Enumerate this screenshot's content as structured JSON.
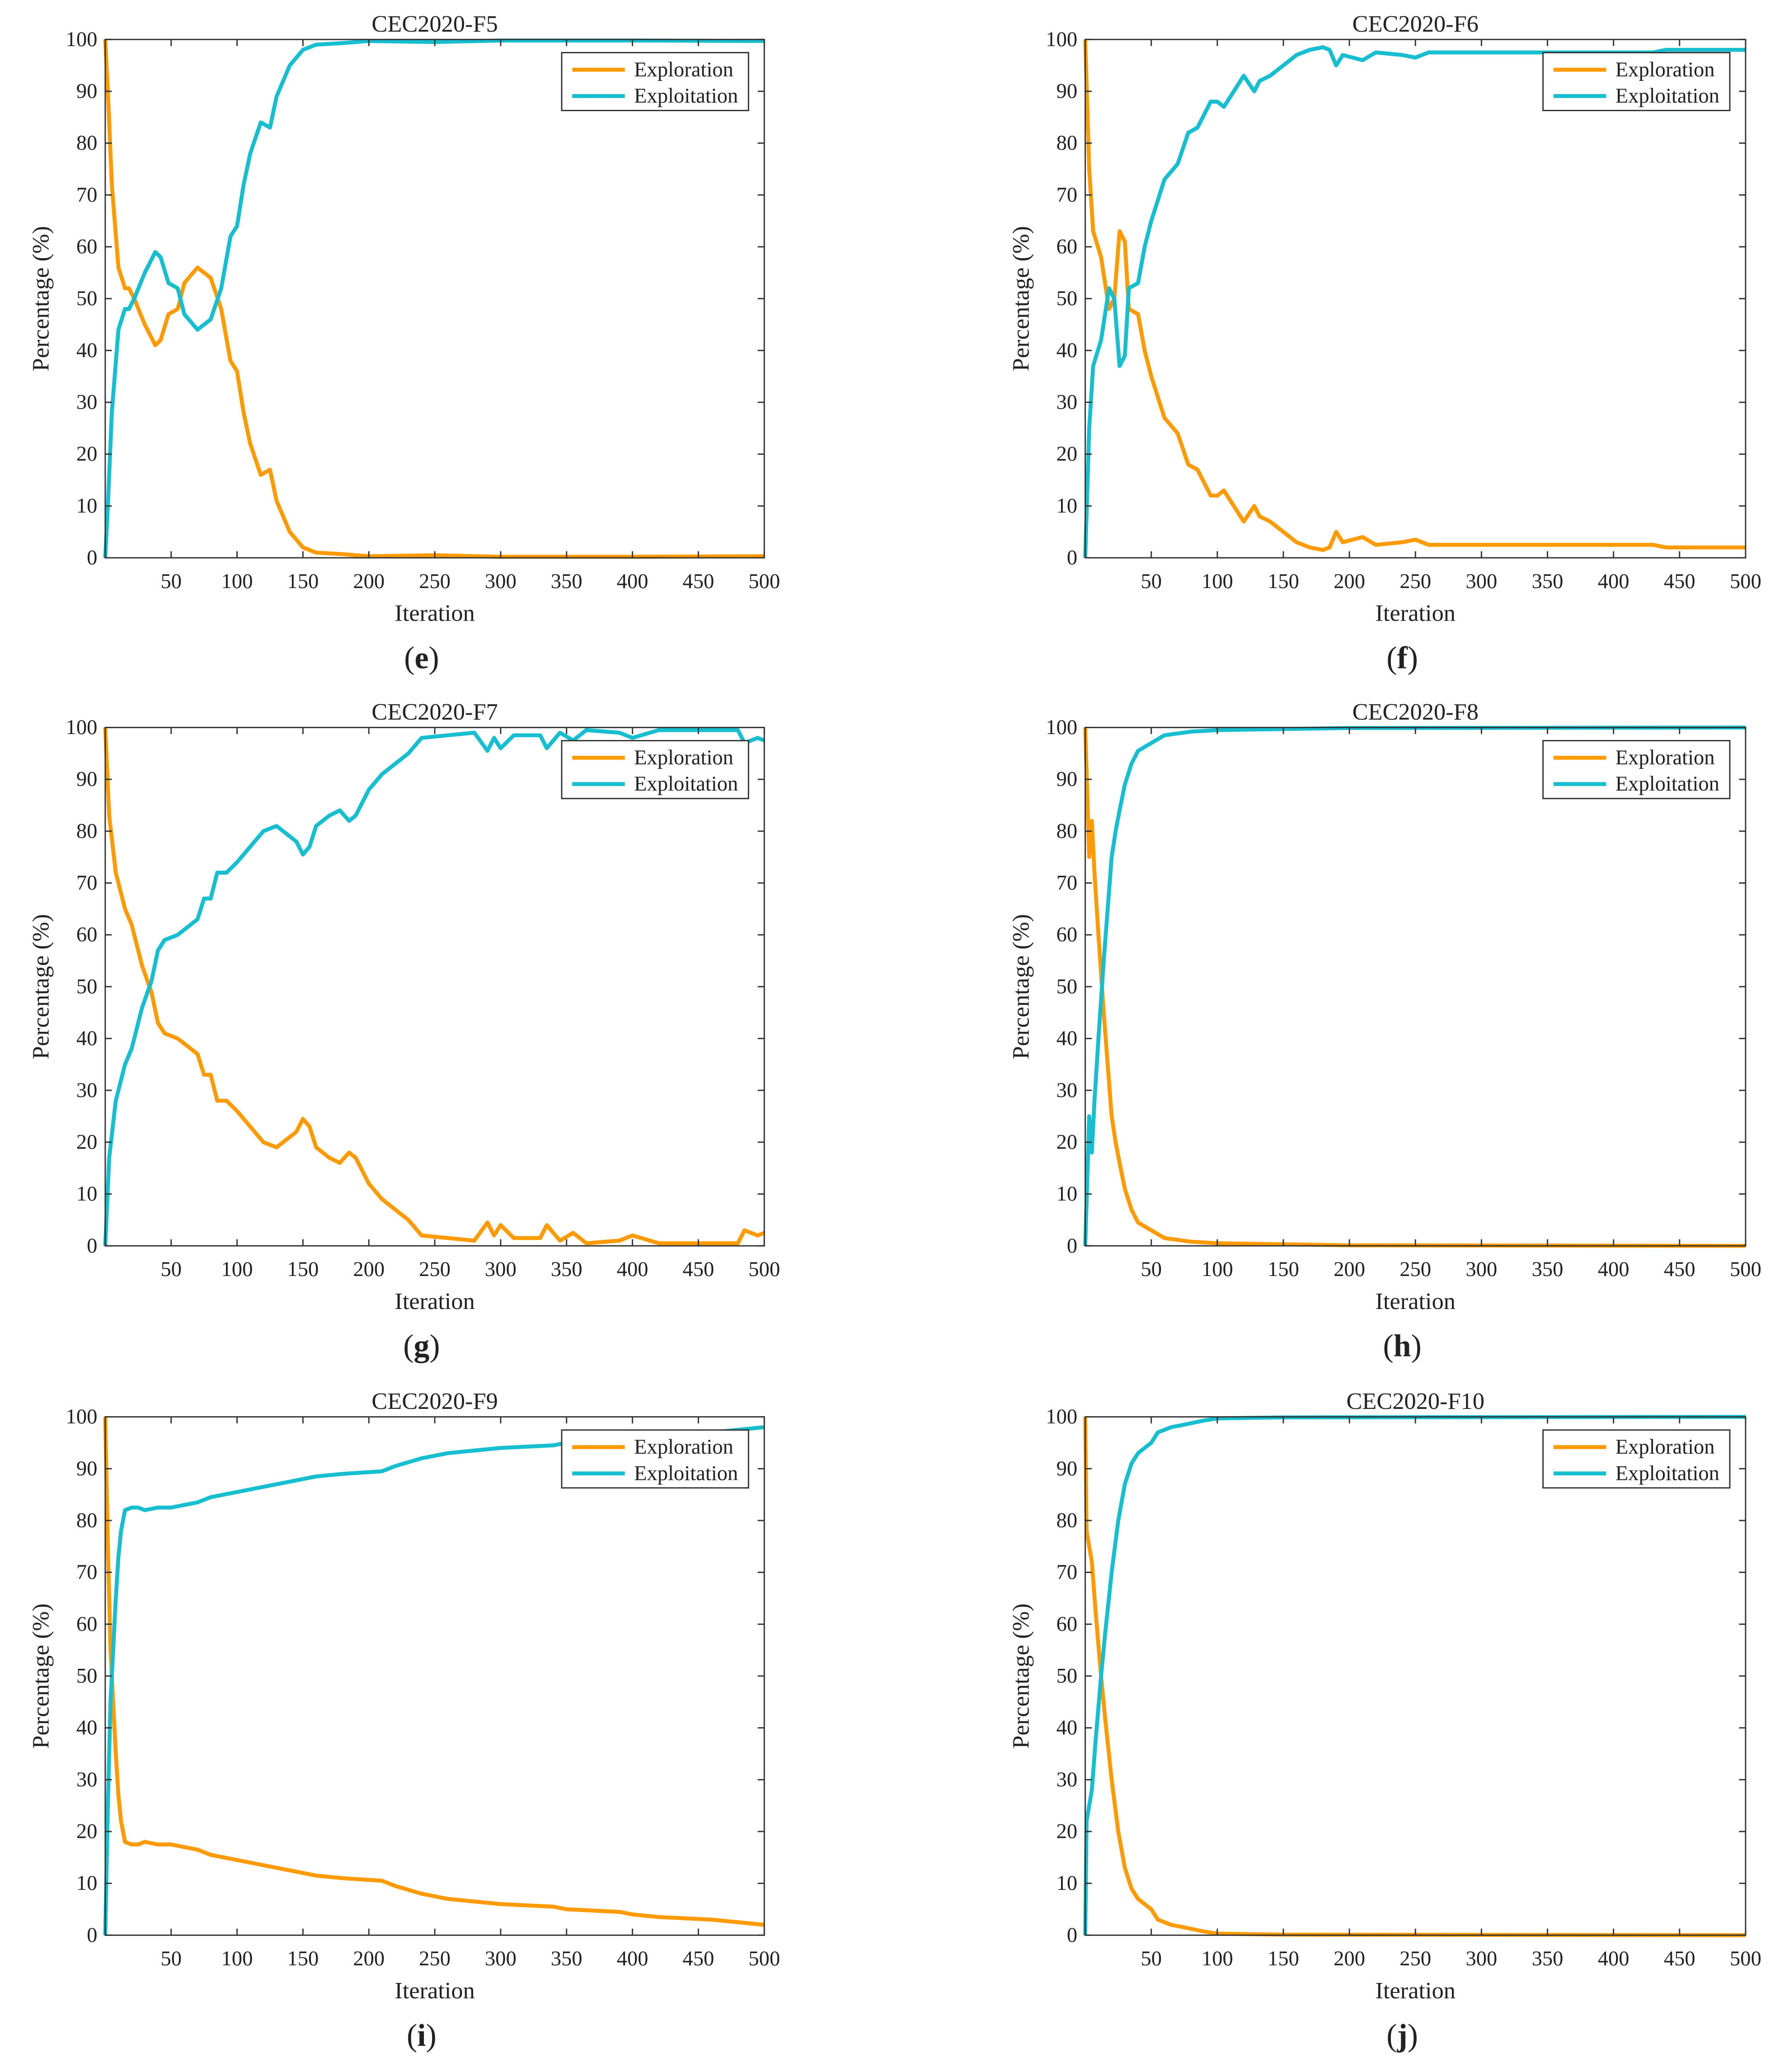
{
  "colors": {
    "exploration": "#FF9A00",
    "exploitation": "#17BECF",
    "axis": "#333333"
  },
  "chart_data": [
    {
      "type": "line",
      "panel": "e",
      "title": "CEC2020-F5",
      "xlabel": "Iteration",
      "ylabel": "Percentage (%)",
      "xlim": [
        0,
        500
      ],
      "ylim": [
        0,
        100
      ],
      "xticks": [
        50,
        100,
        150,
        200,
        250,
        300,
        350,
        400,
        450,
        500
      ],
      "yticks": [
        0,
        10,
        20,
        30,
        40,
        50,
        60,
        70,
        80,
        90,
        100
      ],
      "legend": "top-right",
      "x": [
        0,
        2,
        5,
        10,
        15,
        18,
        22,
        30,
        38,
        42,
        48,
        55,
        60,
        70,
        80,
        88,
        95,
        100,
        105,
        110,
        118,
        125,
        130,
        140,
        150,
        160,
        180,
        200,
        250,
        300,
        400,
        500
      ],
      "series": [
        {
          "name": "Exploration",
          "values": [
            100,
            90,
            72,
            56,
            52,
            52,
            50,
            45,
            41,
            42,
            47,
            48,
            53,
            56,
            54,
            48,
            38,
            36,
            28,
            22,
            16,
            17,
            11,
            5,
            2,
            1,
            0.7,
            0.3,
            0.5,
            0.2,
            0.2,
            0.3
          ]
        },
        {
          "name": "Exploitation",
          "values": [
            0,
            10,
            28,
            44,
            48,
            48,
            50,
            55,
            59,
            58,
            53,
            52,
            47,
            44,
            46,
            52,
            62,
            64,
            72,
            78,
            84,
            83,
            89,
            95,
            98,
            99,
            99.3,
            99.7,
            99.5,
            99.8,
            99.8,
            99.7
          ]
        }
      ]
    },
    {
      "type": "line",
      "panel": "f",
      "title": "CEC2020-F6",
      "xlabel": "Iteration",
      "ylabel": "Percentage (%)",
      "xlim": [
        0,
        500
      ],
      "ylim": [
        0,
        100
      ],
      "xticks": [
        50,
        100,
        150,
        200,
        250,
        300,
        350,
        400,
        450,
        500
      ],
      "yticks": [
        0,
        10,
        20,
        30,
        40,
        50,
        60,
        70,
        80,
        90,
        100
      ],
      "legend": "top-right",
      "x": [
        0,
        3,
        6,
        12,
        18,
        22,
        26,
        30,
        33,
        40,
        45,
        50,
        55,
        60,
        70,
        78,
        85,
        95,
        100,
        105,
        115,
        120,
        128,
        132,
        140,
        150,
        160,
        170,
        180,
        185,
        190,
        195,
        210,
        220,
        240,
        250,
        260,
        300,
        430,
        440,
        500
      ],
      "series": [
        {
          "name": "Exploration",
          "values": [
            100,
            75,
            63,
            58,
            48,
            50,
            63,
            61,
            48,
            47,
            40,
            35,
            31,
            27,
            24,
            18,
            17,
            12,
            12,
            13,
            9,
            7,
            10,
            8,
            7,
            5,
            3,
            2,
            1.5,
            2,
            5,
            3,
            4,
            2.5,
            3,
            3.5,
            2.5,
            2.5,
            2.5,
            2,
            2
          ]
        },
        {
          "name": "Exploitation",
          "values": [
            0,
            25,
            37,
            42,
            52,
            50,
            37,
            39,
            52,
            53,
            60,
            65,
            69,
            73,
            76,
            82,
            83,
            88,
            88,
            87,
            91,
            93,
            90,
            92,
            93,
            95,
            97,
            98,
            98.5,
            98,
            95,
            97,
            96,
            97.5,
            97,
            96.5,
            97.5,
            97.5,
            97.5,
            98,
            98
          ]
        }
      ]
    },
    {
      "type": "line",
      "panel": "g",
      "title": "CEC2020-F7",
      "xlabel": "Iteration",
      "ylabel": "Percentage (%)",
      "xlim": [
        0,
        500
      ],
      "ylim": [
        0,
        100
      ],
      "xticks": [
        50,
        100,
        150,
        200,
        250,
        300,
        350,
        400,
        450,
        500
      ],
      "yticks": [
        0,
        10,
        20,
        30,
        40,
        50,
        60,
        70,
        80,
        90,
        100
      ],
      "legend": "top-right",
      "x": [
        0,
        3,
        8,
        15,
        20,
        28,
        35,
        40,
        45,
        55,
        65,
        70,
        75,
        80,
        85,
        92,
        100,
        110,
        120,
        130,
        140,
        145,
        150,
        155,
        160,
        170,
        178,
        185,
        190,
        200,
        210,
        230,
        240,
        260,
        280,
        290,
        295,
        300,
        310,
        330,
        335,
        345,
        355,
        365,
        390,
        400,
        420,
        450,
        480,
        485,
        495,
        500
      ],
      "series": [
        {
          "name": "Exploration",
          "values": [
            100,
            83,
            72,
            65,
            62,
            54,
            49,
            43,
            41,
            40,
            38,
            37,
            33,
            33,
            28,
            28,
            26,
            23,
            20,
            19,
            21,
            22,
            24.5,
            23,
            19,
            17,
            16,
            18,
            17,
            12,
            9,
            5,
            2,
            1.5,
            1,
            4.5,
            2,
            4,
            1.5,
            1.5,
            4,
            1,
            2.5,
            0.5,
            1,
            2,
            0.5,
            0.5,
            0.5,
            3,
            2,
            2.5
          ]
        },
        {
          "name": "Exploitation",
          "values": [
            0,
            17,
            28,
            35,
            38,
            46,
            51,
            57,
            59,
            60,
            62,
            63,
            67,
            67,
            72,
            72,
            74,
            77,
            80,
            81,
            79,
            78,
            75.5,
            77,
            81,
            83,
            84,
            82,
            83,
            88,
            91,
            95,
            98,
            98.5,
            99,
            95.5,
            98,
            96,
            98.5,
            98.5,
            96,
            99,
            97.5,
            99.5,
            99,
            98,
            99.5,
            99.5,
            99.5,
            97,
            98,
            97.5
          ]
        }
      ]
    },
    {
      "type": "line",
      "panel": "h",
      "title": "CEC2020-F8",
      "xlabel": "Iteration",
      "ylabel": "Percentage (%)",
      "xlim": [
        0,
        500
      ],
      "ylim": [
        0,
        100
      ],
      "xticks": [
        50,
        100,
        150,
        200,
        250,
        300,
        350,
        400,
        450,
        500
      ],
      "yticks": [
        0,
        10,
        20,
        30,
        40,
        50,
        60,
        70,
        80,
        90,
        100
      ],
      "legend": "top-right",
      "x": [
        0,
        3,
        5,
        7,
        10,
        14,
        17,
        20,
        23,
        26,
        30,
        35,
        40,
        50,
        60,
        80,
        100,
        150,
        200,
        500
      ],
      "series": [
        {
          "name": "Exploration",
          "values": [
            100,
            75,
            82,
            72,
            60,
            45,
            35,
            25,
            20,
            16,
            11,
            7,
            4.5,
            3,
            1.5,
            0.8,
            0.5,
            0.3,
            0.1,
            0
          ]
        },
        {
          "name": "Exploitation",
          "values": [
            0,
            25,
            18,
            28,
            40,
            55,
            65,
            75,
            80,
            84,
            89,
            93,
            95.5,
            97,
            98.5,
            99.2,
            99.5,
            99.7,
            99.9,
            100
          ]
        }
      ]
    },
    {
      "type": "line",
      "panel": "i",
      "title": "CEC2020-F9",
      "xlabel": "Iteration",
      "ylabel": "Percentage (%)",
      "xlim": [
        0,
        500
      ],
      "ylim": [
        0,
        100
      ],
      "xticks": [
        50,
        100,
        150,
        200,
        250,
        300,
        350,
        400,
        450,
        500
      ],
      "yticks": [
        0,
        10,
        20,
        30,
        40,
        50,
        60,
        70,
        80,
        90,
        100
      ],
      "legend": "top-right",
      "x": [
        0,
        2,
        4,
        6,
        8,
        10,
        12,
        15,
        20,
        25,
        30,
        40,
        50,
        60,
        70,
        80,
        90,
        100,
        110,
        120,
        130,
        140,
        160,
        180,
        210,
        220,
        240,
        260,
        280,
        300,
        340,
        350,
        390,
        400,
        420,
        460,
        480,
        500
      ],
      "series": [
        {
          "name": "Exploration",
          "values": [
            100,
            75,
            55,
            45,
            35,
            27,
            22,
            18,
            17.5,
            17.5,
            18,
            17.5,
            17.5,
            17,
            16.5,
            15.5,
            15,
            14.5,
            14,
            13.5,
            13,
            12.5,
            11.5,
            11,
            10.5,
            9.5,
            8,
            7,
            6.5,
            6,
            5.5,
            5,
            4.5,
            4,
            3.5,
            3,
            2.5,
            2
          ]
        },
        {
          "name": "Exploitation",
          "values": [
            0,
            25,
            45,
            55,
            65,
            73,
            78,
            82,
            82.5,
            82.5,
            82,
            82.5,
            82.5,
            83,
            83.5,
            84.5,
            85,
            85.5,
            86,
            86.5,
            87,
            87.5,
            88.5,
            89,
            89.5,
            90.5,
            92,
            93,
            93.5,
            94,
            94.5,
            95,
            95.5,
            96,
            96.5,
            97,
            97.5,
            98
          ]
        }
      ]
    },
    {
      "type": "line",
      "panel": "j",
      "title": "CEC2020-F10",
      "xlabel": "Iteration",
      "ylabel": "Percentage (%)",
      "xlim": [
        0,
        500
      ],
      "ylim": [
        0,
        100
      ],
      "xticks": [
        50,
        100,
        150,
        200,
        250,
        300,
        350,
        400,
        450,
        500
      ],
      "yticks": [
        0,
        10,
        20,
        30,
        40,
        50,
        60,
        70,
        80,
        90,
        100
      ],
      "legend": "top-right",
      "x": [
        0,
        1,
        5,
        8,
        12,
        15,
        20,
        25,
        30,
        35,
        40,
        50,
        55,
        65,
        75,
        90,
        100,
        150,
        500
      ],
      "series": [
        {
          "name": "Exploration",
          "values": [
            100,
            78,
            72,
            62,
            50,
            42,
            30,
            20,
            13,
            9,
            7,
            5,
            3,
            2,
            1.5,
            0.7,
            0.3,
            0.1,
            0
          ]
        },
        {
          "name": "Exploitation",
          "values": [
            0,
            22,
            28,
            38,
            50,
            58,
            70,
            80,
            87,
            91,
            93,
            95,
            97,
            98,
            98.5,
            99.3,
            99.7,
            99.9,
            100
          ]
        }
      ]
    }
  ]
}
